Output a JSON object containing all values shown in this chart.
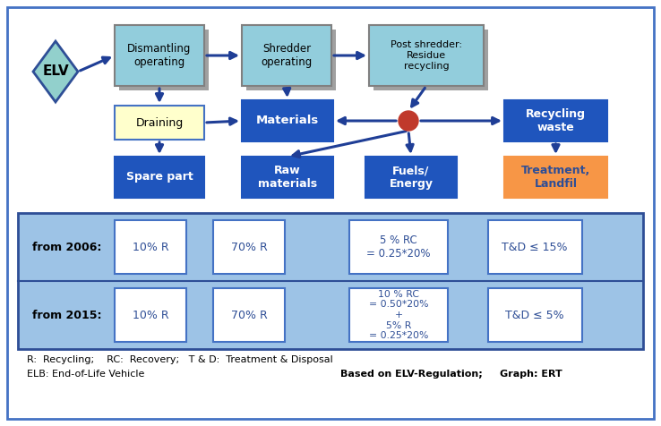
{
  "bg_color": "#ffffff",
  "outer_border_color": "#4472c4",
  "bottom_section_bg": "#9dc3e6",
  "diamond_fill": "#92d0cc",
  "diamond_edge": "#2e4e96",
  "box_teal_fill": "#92cddc",
  "box_teal_edge": "#808080",
  "shadow_color": "#a0a0a0",
  "box_blue_fill": "#1f55bd",
  "box_blue_edge": "#1f55bd",
  "box_yellow_fill": "#ffffcc",
  "box_yellow_edge": "#4472c4",
  "box_orange_fill": "#f79646",
  "box_orange_edge": "#f79646",
  "arrow_color": "#1f3e96",
  "dot_color": "#c0392b",
  "table_border_color": "#2e4e96",
  "small_box_fill": "#ffffff",
  "small_box_edge": "#4472c4",
  "text_blue": "#2e4e96",
  "text_white": "#ffffff",
  "text_black": "#000000",
  "text_orange": "#f79646",
  "footnote_text": "R:  Recycling;    RC:  Recovery;   T & D:  Treatment & Disposal",
  "footnote2_text": "ELB: End-of-Life Vehicle",
  "footnote3_text": "Based on ELV-Regulation;     Graph: ERT"
}
